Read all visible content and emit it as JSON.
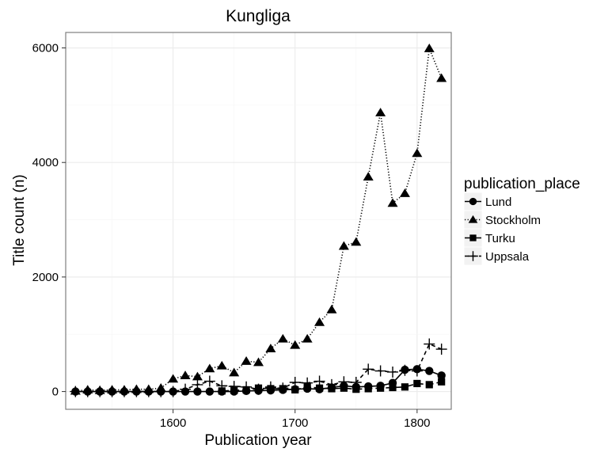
{
  "chart_data": {
    "type": "line",
    "title": "Kungliga",
    "xlabel": "Publication year",
    "ylabel": "Title count (n)",
    "xlim": [
      1512,
      1828
    ],
    "ylim": [
      -310,
      6270
    ],
    "x_ticks": [
      1600,
      1700,
      1800
    ],
    "y_ticks": [
      0,
      2000,
      4000,
      6000
    ],
    "grid": true,
    "legend": {
      "title": "publication_place",
      "position": "right"
    },
    "series": [
      {
        "name": "Lund",
        "marker": "circle",
        "line": "solid",
        "points": [
          [
            1520,
            0
          ],
          [
            1530,
            0
          ],
          [
            1540,
            0
          ],
          [
            1550,
            0
          ],
          [
            1560,
            0
          ],
          [
            1570,
            0
          ],
          [
            1580,
            0
          ],
          [
            1590,
            0
          ],
          [
            1600,
            0
          ],
          [
            1610,
            0
          ],
          [
            1620,
            0
          ],
          [
            1630,
            0
          ],
          [
            1640,
            0
          ],
          [
            1650,
            0
          ],
          [
            1660,
            10
          ],
          [
            1670,
            15
          ],
          [
            1680,
            20
          ],
          [
            1690,
            30
          ],
          [
            1700,
            40
          ],
          [
            1710,
            50
          ],
          [
            1720,
            40
          ],
          [
            1730,
            70
          ],
          [
            1740,
            100
          ],
          [
            1750,
            80
          ],
          [
            1760,
            90
          ],
          [
            1770,
            100
          ],
          [
            1780,
            150
          ],
          [
            1790,
            380
          ],
          [
            1800,
            390
          ],
          [
            1810,
            360
          ],
          [
            1820,
            280
          ]
        ]
      },
      {
        "name": "Stockholm",
        "marker": "triangle",
        "line": "dotted",
        "points": [
          [
            1520,
            10
          ],
          [
            1530,
            30
          ],
          [
            1540,
            20
          ],
          [
            1550,
            30
          ],
          [
            1560,
            30
          ],
          [
            1570,
            40
          ],
          [
            1580,
            40
          ],
          [
            1590,
            60
          ],
          [
            1600,
            220
          ],
          [
            1610,
            280
          ],
          [
            1620,
            260
          ],
          [
            1630,
            400
          ],
          [
            1640,
            450
          ],
          [
            1650,
            330
          ],
          [
            1660,
            530
          ],
          [
            1670,
            510
          ],
          [
            1680,
            750
          ],
          [
            1690,
            920
          ],
          [
            1700,
            810
          ],
          [
            1710,
            920
          ],
          [
            1720,
            1210
          ],
          [
            1730,
            1430
          ],
          [
            1740,
            2540
          ],
          [
            1750,
            2610
          ],
          [
            1760,
            3750
          ],
          [
            1770,
            4870
          ],
          [
            1780,
            3290
          ],
          [
            1790,
            3460
          ],
          [
            1800,
            4160
          ],
          [
            1810,
            5990
          ],
          [
            1820,
            5470
          ]
        ]
      },
      {
        "name": "Turku",
        "marker": "square",
        "line": "longdash",
        "points": [
          [
            1640,
            10
          ],
          [
            1650,
            20
          ],
          [
            1660,
            30
          ],
          [
            1670,
            60
          ],
          [
            1680,
            50
          ],
          [
            1690,
            50
          ],
          [
            1700,
            30
          ],
          [
            1710,
            80
          ],
          [
            1720,
            60
          ],
          [
            1730,
            50
          ],
          [
            1740,
            60
          ],
          [
            1750,
            40
          ],
          [
            1760,
            50
          ],
          [
            1770,
            60
          ],
          [
            1780,
            70
          ],
          [
            1790,
            80
          ],
          [
            1800,
            140
          ],
          [
            1810,
            120
          ],
          [
            1820,
            170
          ]
        ]
      },
      {
        "name": "Uppsala",
        "marker": "plus",
        "line": "dashed",
        "points": [
          [
            1520,
            0
          ],
          [
            1530,
            0
          ],
          [
            1540,
            0
          ],
          [
            1550,
            0
          ],
          [
            1560,
            0
          ],
          [
            1570,
            0
          ],
          [
            1580,
            0
          ],
          [
            1590,
            0
          ],
          [
            1600,
            0
          ],
          [
            1610,
            40
          ],
          [
            1620,
            120
          ],
          [
            1630,
            180
          ],
          [
            1640,
            100
          ],
          [
            1650,
            90
          ],
          [
            1660,
            80
          ],
          [
            1670,
            40
          ],
          [
            1680,
            80
          ],
          [
            1690,
            60
          ],
          [
            1700,
            160
          ],
          [
            1710,
            150
          ],
          [
            1720,
            180
          ],
          [
            1730,
            120
          ],
          [
            1740,
            170
          ],
          [
            1750,
            160
          ],
          [
            1760,
            390
          ],
          [
            1770,
            360
          ],
          [
            1780,
            340
          ],
          [
            1790,
            370
          ],
          [
            1800,
            360
          ],
          [
            1810,
            830
          ],
          [
            1820,
            740
          ]
        ]
      }
    ]
  },
  "colors": {
    "panel_border": "#7f7f7f",
    "grid_major": "#ebebeb",
    "grid_minor": "#f5f5f5",
    "mark": "#000000"
  }
}
